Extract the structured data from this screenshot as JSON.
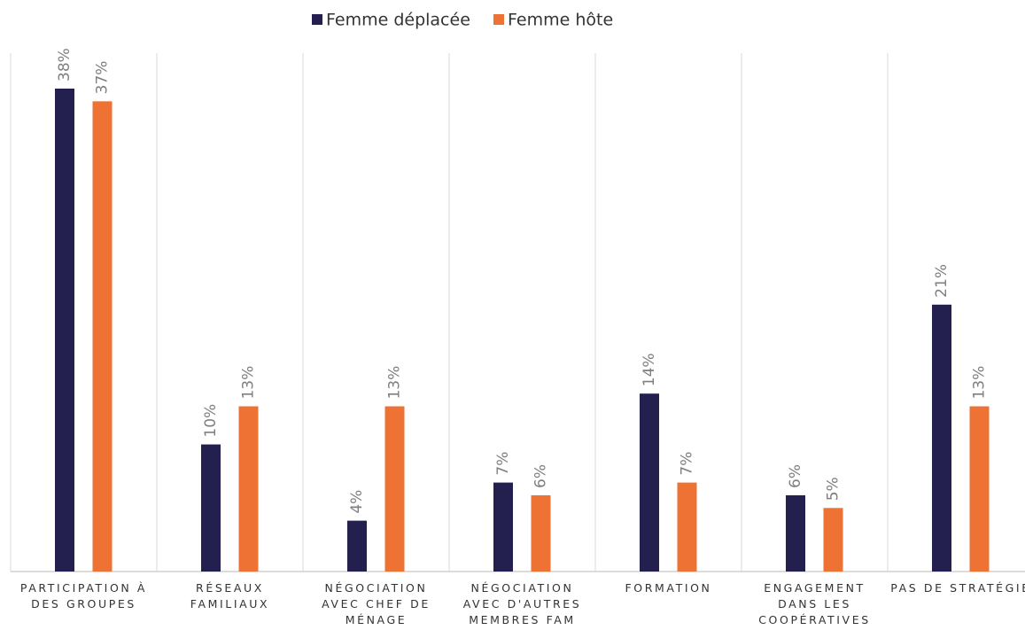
{
  "chart_data": {
    "type": "bar",
    "categories": [
      "PARTICIPATION À DES GROUPES",
      "RÉSEAUX FAMILIAUX",
      "NÉGOCIATION AVEC CHEF DE MÉNAGE",
      "NÉGOCIATION AVEC D'AUTRES MEMBRES FAM",
      "FORMATION",
      "ENGAGEMENT DANS LES COOPÉRATIVES",
      "PAS DE STRATÉGIE"
    ],
    "series": [
      {
        "name": "Femme déplacée",
        "color": "#231f4f",
        "values": [
          38,
          10,
          4,
          7,
          14,
          6,
          21
        ],
        "value_labels": [
          "38%",
          "10%",
          "4%",
          "7%",
          "14%",
          "6%",
          "21%"
        ]
      },
      {
        "name": "Femme hôte",
        "color": "#ed7234",
        "values": [
          37,
          13,
          13,
          6,
          7,
          5,
          13
        ],
        "value_labels": [
          "37%",
          "13%",
          "13%",
          "6%",
          "7%",
          "5%",
          "13%"
        ]
      }
    ],
    "legend": "top"
  }
}
